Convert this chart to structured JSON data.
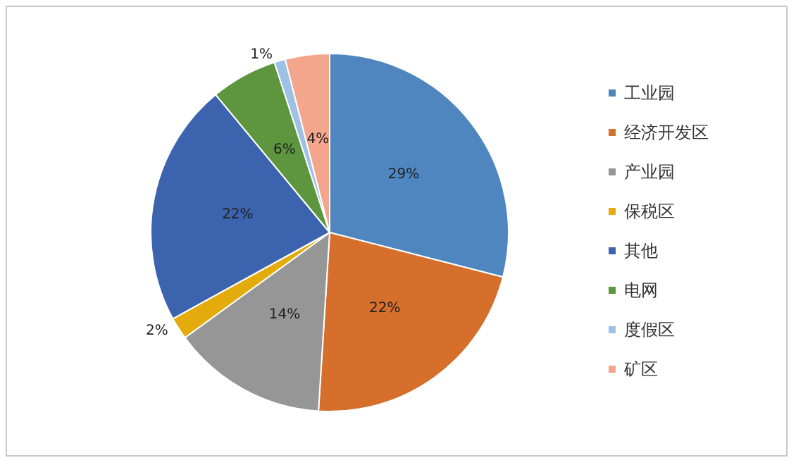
{
  "chart_data": {
    "type": "pie",
    "categories": [
      "工业园",
      "经济开发区",
      "产业园",
      "保税区",
      "其他",
      "电网",
      "度假区",
      "矿区"
    ],
    "values": [
      29,
      22,
      14,
      2,
      22,
      6,
      1,
      4
    ],
    "value_labels": [
      "29%",
      "22%",
      "14%",
      "2%",
      "22%",
      "6%",
      "1%",
      "4%"
    ],
    "colors": [
      "#4f86c0",
      "#d66f2c",
      "#969696",
      "#e3ac0c",
      "#3c63ad",
      "#5d963f",
      "#9cc0e6",
      "#f3a68b"
    ],
    "legend": "right"
  }
}
